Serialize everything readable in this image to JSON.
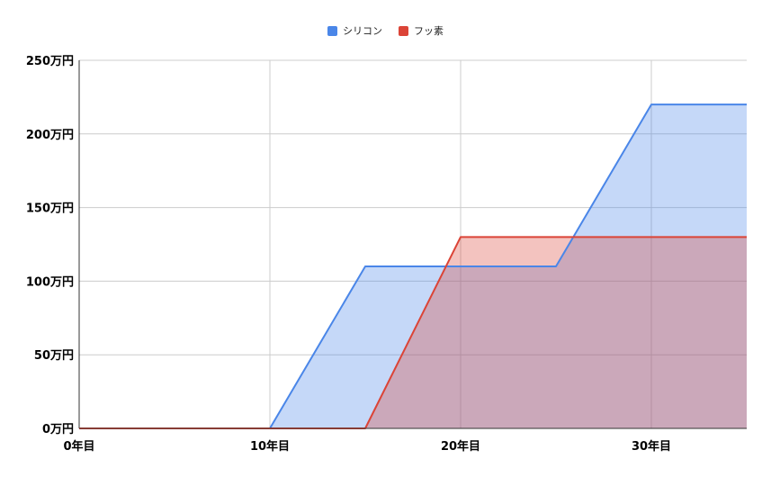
{
  "chart_data": {
    "type": "area",
    "x": [
      0,
      5,
      10,
      15,
      20,
      25,
      30,
      35
    ],
    "xlim": [
      0,
      35
    ],
    "ylim": [
      0,
      250
    ],
    "x_ticks": [
      0,
      10,
      20,
      30
    ],
    "x_tick_labels": [
      "0年目",
      "10年目",
      "20年目",
      "30年目"
    ],
    "y_ticks": [
      0,
      50,
      100,
      150,
      200,
      250
    ],
    "y_tick_labels": [
      "0万円",
      "50万円",
      "100万円",
      "150万円",
      "200万円",
      "250万円"
    ],
    "grid": true,
    "legend_position": "top",
    "series": [
      {
        "name": "シリコン",
        "color": "#4a86e8",
        "values": [
          0,
          0,
          0,
          110,
          110,
          110,
          220,
          220
        ]
      },
      {
        "name": "フッ素",
        "color": "#db4437",
        "values": [
          0,
          0,
          0,
          0,
          130,
          130,
          130,
          130
        ]
      }
    ]
  }
}
